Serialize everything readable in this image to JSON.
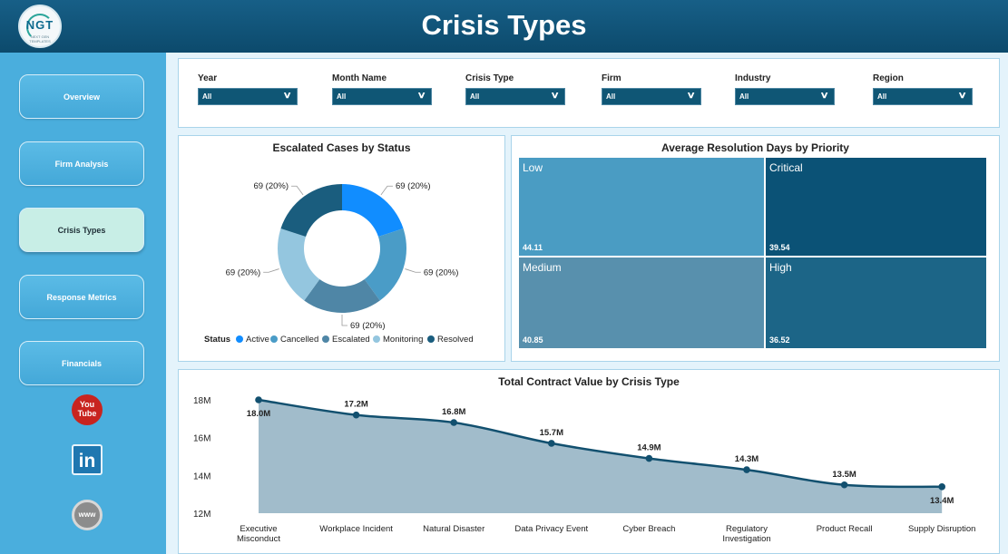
{
  "header": {
    "title": "Crisis Types",
    "logo_text": "NGT",
    "logo_sub": "NEXT GEN TEMPLATES"
  },
  "nav": [
    "Overview",
    "Firm Analysis",
    "Crisis Types",
    "Response Metrics",
    "Financials"
  ],
  "nav_active": "Crisis Types",
  "social": {
    "youtube": "You Tube",
    "linkedin": "in",
    "web": "www"
  },
  "filters": [
    {
      "label": "Year",
      "value": "All"
    },
    {
      "label": "Month Name",
      "value": "All"
    },
    {
      "label": "Crisis Type",
      "value": "All"
    },
    {
      "label": "Firm",
      "value": "All"
    },
    {
      "label": "Industry",
      "value": "All"
    },
    {
      "label": "Region",
      "value": "All"
    }
  ],
  "colors": {
    "active": "#118dff",
    "cancelled": "#4a9cc7",
    "escalated": "#4f86a6",
    "monitoring": "#94c6df",
    "resolved": "#1a5d7e",
    "low": "#4a9cc3",
    "critical": "#0b5276",
    "medium": "#5890ad",
    "high": "#1c6587",
    "line": "#12506f",
    "area": "#a1bccb"
  },
  "donut": {
    "title": "Escalated Cases by Status",
    "legend_title": "Status",
    "chart_data": {
      "type": "pie",
      "categories": [
        "Active",
        "Cancelled",
        "Escalated",
        "Monitoring",
        "Resolved"
      ],
      "values": [
        69,
        69,
        69,
        69,
        69
      ],
      "labels": [
        "69 (20%)",
        "69 (20%)",
        "69 (20%)",
        "69 (20%)",
        "69 (20%)"
      ]
    }
  },
  "treemap": {
    "title": "Average Resolution Days by Priority",
    "chart_data": {
      "type": "treemap",
      "categories": [
        "Low",
        "Critical",
        "Medium",
        "High"
      ],
      "values": [
        44.11,
        39.54,
        40.85,
        36.52
      ]
    }
  },
  "line": {
    "title": "Total Contract Value by Crisis Type",
    "chart_data": {
      "type": "area",
      "categories": [
        "Executive Misconduct",
        "Workplace Incident",
        "Natural Disaster",
        "Data Privacy Event",
        "Cyber Breach",
        "Regulatory Investigation",
        "Product Recall",
        "Supply Disruption"
      ],
      "values": [
        18.0,
        17.2,
        16.8,
        15.7,
        14.9,
        14.3,
        13.5,
        13.4
      ],
      "labels": [
        "18.0M",
        "17.2M",
        "16.8M",
        "15.7M",
        "14.9M",
        "14.3M",
        "13.5M",
        "13.4M"
      ],
      "yticks": [
        "18M",
        "16M",
        "14M",
        "12M"
      ],
      "ylim": [
        12,
        18
      ]
    }
  }
}
